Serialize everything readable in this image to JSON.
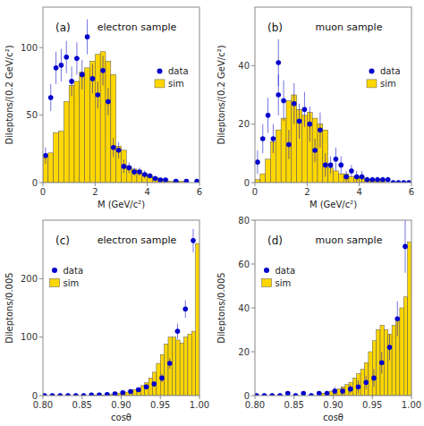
{
  "chart_data": [
    {
      "type": "histogram",
      "title": "electron sample",
      "annotations": [
        "(a)"
      ],
      "xlabel": "M (GeV/c²)",
      "ylabel": "Dileptons/(0.2 GeV/c²)",
      "xlim": [
        0,
        6
      ],
      "xticks": [
        0,
        2,
        4,
        6
      ],
      "ylim": [
        0,
        130
      ],
      "yticks": [
        0,
        50,
        100
      ],
      "grid": false,
      "legend": "right",
      "bins": [
        0.0,
        0.2,
        0.4,
        0.6,
        0.8,
        1.0,
        1.2,
        1.4,
        1.6,
        1.8,
        2.0,
        2.2,
        2.4,
        2.6,
        2.8,
        3.0,
        3.2,
        3.4,
        3.6,
        3.8,
        4.0,
        4.2,
        4.4,
        4.6,
        4.8,
        5.0,
        5.2,
        5.4,
        5.6,
        5.8,
        6.0
      ],
      "series": [
        {
          "name": "data",
          "type": "scatter",
          "color": "#0000CC",
          "marker": "circle",
          "x": [
            0.1,
            0.3,
            0.5,
            0.7,
            0.9,
            1.1,
            1.3,
            1.5,
            1.7,
            1.9,
            2.1,
            2.3,
            2.5,
            2.7,
            2.9,
            3.1,
            3.3,
            3.5,
            3.7,
            3.9,
            4.1,
            4.3,
            4.5,
            4.7,
            5.1,
            5.5,
            5.9
          ],
          "values": [
            20,
            63,
            85,
            87,
            93,
            75,
            92,
            80,
            108,
            77,
            65,
            83,
            60,
            26,
            24,
            12,
            11,
            8,
            8,
            6,
            5,
            3,
            2,
            2,
            1,
            1,
            1
          ],
          "errors": [
            6,
            10,
            12,
            12,
            12,
            11,
            12,
            11,
            13,
            11,
            10,
            11,
            10,
            7,
            6,
            5,
            4,
            3,
            3,
            3,
            2,
            2,
            1,
            1,
            1,
            1,
            1
          ]
        },
        {
          "name": "sim",
          "type": "histogram",
          "color": "#FFD700",
          "values": [
            20,
            22,
            37,
            38,
            60,
            72,
            75,
            82,
            85,
            90,
            95,
            97,
            90,
            80,
            27,
            24,
            12,
            10,
            9,
            7,
            5,
            4,
            3,
            2,
            1,
            1,
            1,
            0,
            0,
            0
          ]
        }
      ]
    },
    {
      "type": "histogram",
      "title": "muon sample",
      "annotations": [
        "(b)"
      ],
      "xlabel": "M (GeV/c²)",
      "ylabel": "Dileptons/(0.2 GeV/c²)",
      "xlim": [
        0,
        6
      ],
      "xticks": [
        0,
        2,
        4,
        6
      ],
      "ylim": [
        0,
        60
      ],
      "yticks": [
        0,
        20,
        40
      ],
      "grid": false,
      "legend": "right",
      "bins": [
        0.0,
        0.2,
        0.4,
        0.6,
        0.8,
        1.0,
        1.2,
        1.4,
        1.6,
        1.8,
        2.0,
        2.2,
        2.4,
        2.6,
        2.8,
        3.0,
        3.2,
        3.4,
        3.6,
        3.8,
        4.0,
        4.2,
        4.4,
        4.6,
        4.8,
        5.0,
        5.2,
        5.4,
        5.6,
        5.8,
        6.0
      ],
      "series": [
        {
          "name": "data",
          "type": "scatter",
          "color": "#0000CC",
          "marker": "circle",
          "x": [
            0.1,
            0.3,
            0.5,
            0.7,
            0.9,
            1.1,
            1.3,
            1.5,
            1.7,
            1.9,
            2.1,
            2.3,
            2.5,
            2.7,
            2.9,
            3.1,
            3.3,
            3.5,
            3.7,
            3.9,
            4.1,
            4.3,
            4.5,
            4.7,
            4.9,
            5.1,
            5.3,
            5.5,
            5.7,
            5.9,
            0.9
          ],
          "values": [
            7,
            15,
            23,
            15,
            30,
            28,
            13,
            27,
            21,
            25,
            20,
            11,
            18,
            6,
            6,
            8,
            6,
            2,
            4,
            2,
            2,
            1,
            1,
            1,
            1,
            1,
            0,
            0,
            0,
            0,
            41
          ],
          "errors": [
            4,
            5,
            6,
            5,
            7,
            7,
            5,
            7,
            6,
            6,
            6,
            4,
            6,
            4,
            3,
            4,
            3,
            2,
            2,
            2,
            2,
            1,
            1,
            1,
            1,
            1,
            0,
            0,
            0,
            0,
            8
          ]
        },
        {
          "name": "sim",
          "type": "histogram",
          "color": "#FFD700",
          "values": [
            1,
            3,
            8,
            14,
            18,
            22,
            28,
            30,
            25,
            23,
            24,
            22,
            20,
            18,
            5,
            4,
            3,
            3,
            2,
            2,
            2,
            1,
            1,
            1,
            1,
            0,
            0,
            0,
            0,
            0
          ]
        }
      ]
    },
    {
      "type": "histogram",
      "title": "electron sample",
      "annotations": [
        "(c)"
      ],
      "xlabel": "cosθ",
      "ylabel": "Dileptons/0.005",
      "xlim": [
        0.8,
        1.0
      ],
      "xticks": [
        {
          "value": 0.8,
          "label": "0.80"
        },
        {
          "value": 0.85,
          "label": "0.85"
        },
        {
          "value": 0.9,
          "label": "0.90"
        },
        {
          "value": 0.95,
          "label": "0.95"
        },
        {
          "value": 1.0,
          "label": "1.00"
        }
      ],
      "ylim": [
        0,
        300
      ],
      "yticks": [
        0,
        100,
        200
      ],
      "grid": false,
      "legend": "upper left",
      "bins": [
        0.8,
        0.805,
        0.81,
        0.815,
        0.82,
        0.825,
        0.83,
        0.835,
        0.84,
        0.845,
        0.85,
        0.855,
        0.86,
        0.865,
        0.87,
        0.875,
        0.88,
        0.885,
        0.89,
        0.895,
        0.9,
        0.905,
        0.91,
        0.915,
        0.92,
        0.925,
        0.93,
        0.935,
        0.94,
        0.945,
        0.95,
        0.955,
        0.96,
        0.965,
        0.97,
        0.975,
        0.98,
        0.985,
        0.99,
        0.995,
        1.0
      ],
      "series": [
        {
          "name": "data",
          "type": "scatter",
          "color": "#0000CC",
          "marker": "circle",
          "x": [
            0.802,
            0.812,
            0.822,
            0.832,
            0.842,
            0.852,
            0.862,
            0.872,
            0.882,
            0.892,
            0.902,
            0.912,
            0.922,
            0.932,
            0.942,
            0.952,
            0.962,
            0.972,
            0.982,
            0.992
          ],
          "values": [
            0,
            0,
            0,
            0,
            0,
            0,
            1,
            1,
            2,
            3,
            5,
            7,
            10,
            15,
            20,
            30,
            55,
            110,
            148,
            265
          ],
          "errors": [
            0,
            0,
            0,
            0,
            0,
            0,
            1,
            1,
            2,
            2,
            3,
            3,
            4,
            5,
            5,
            7,
            9,
            13,
            15,
            20
          ]
        },
        {
          "name": "sim",
          "type": "histogram",
          "color": "#FFD700",
          "values": [
            0,
            0,
            0,
            0,
            0,
            0,
            0,
            0,
            0,
            0,
            0,
            0,
            1,
            1,
            1,
            1,
            2,
            2,
            3,
            4,
            5,
            6,
            8,
            10,
            13,
            17,
            22,
            30,
            40,
            55,
            70,
            88,
            100,
            100,
            95,
            90,
            100,
            105,
            110,
            260
          ]
        }
      ]
    },
    {
      "type": "histogram",
      "title": "muon sample",
      "annotations": [
        "(d)"
      ],
      "xlabel": "cosθ",
      "ylabel": "Dileptons/0.005",
      "xlim": [
        0.8,
        1.0
      ],
      "xticks": [
        {
          "value": 0.8,
          "label": "0.80"
        },
        {
          "value": 0.85,
          "label": "0.85"
        },
        {
          "value": 0.9,
          "label": "0.90"
        },
        {
          "value": 0.95,
          "label": "0.95"
        },
        {
          "value": 1.0,
          "label": "1.00"
        }
      ],
      "ylim": [
        0,
        80
      ],
      "yticks": [
        0,
        20,
        40,
        60,
        80
      ],
      "grid": false,
      "legend": "upper left",
      "bins": [
        0.8,
        0.805,
        0.81,
        0.815,
        0.82,
        0.825,
        0.83,
        0.835,
        0.84,
        0.845,
        0.85,
        0.855,
        0.86,
        0.865,
        0.87,
        0.875,
        0.88,
        0.885,
        0.89,
        0.895,
        0.9,
        0.905,
        0.91,
        0.915,
        0.92,
        0.925,
        0.93,
        0.935,
        0.94,
        0.945,
        0.95,
        0.955,
        0.96,
        0.965,
        0.97,
        0.975,
        0.98,
        0.985,
        0.99,
        0.995,
        1.0
      ],
      "series": [
        {
          "name": "data",
          "type": "scatter",
          "color": "#0000CC",
          "marker": "circle",
          "x": [
            0.802,
            0.812,
            0.822,
            0.832,
            0.842,
            0.852,
            0.862,
            0.872,
            0.882,
            0.892,
            0.902,
            0.912,
            0.922,
            0.932,
            0.942,
            0.952,
            0.962,
            0.972,
            0.982,
            0.992
          ],
          "values": [
            0,
            0,
            0,
            0,
            1,
            0,
            1,
            0,
            1,
            1,
            2,
            2,
            3,
            4,
            6,
            8,
            15,
            22,
            35,
            68
          ],
          "errors": [
            0,
            0,
            0,
            0,
            1,
            0,
            1,
            0,
            1,
            1,
            2,
            2,
            2,
            3,
            3,
            4,
            5,
            6,
            8,
            12
          ]
        },
        {
          "name": "sim",
          "type": "histogram",
          "color": "#FFD700",
          "values": [
            0,
            0,
            0,
            0,
            0,
            0,
            0,
            0,
            0,
            0,
            0,
            0,
            0,
            0,
            0,
            0,
            1,
            1,
            1,
            2,
            2,
            3,
            4,
            5,
            6,
            8,
            10,
            12,
            15,
            20,
            25,
            30,
            32,
            30,
            28,
            32,
            35,
            40,
            45,
            70
          ]
        }
      ]
    }
  ]
}
